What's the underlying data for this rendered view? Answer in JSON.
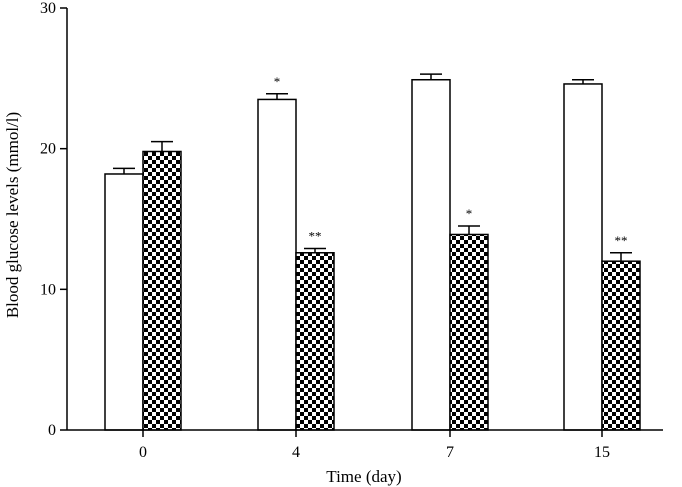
{
  "chart_data": {
    "type": "bar",
    "xlabel": "Time (day)",
    "ylabel": "Blood glucose levels (mmol/l)",
    "categories": [
      "0",
      "4",
      "7",
      "15"
    ],
    "ylim": [
      0,
      30
    ],
    "yticks": [
      0,
      10,
      20,
      30
    ],
    "series": [
      {
        "fill": "white",
        "values": [
          18.2,
          23.5,
          24.9,
          24.6
        ],
        "errors": [
          0.4,
          0.4,
          0.4,
          0.3
        ],
        "annotations": [
          "",
          "*",
          "",
          ""
        ]
      },
      {
        "fill": "checkerboard",
        "values": [
          19.8,
          12.6,
          13.9,
          12.0
        ],
        "errors": [
          0.7,
          0.3,
          0.6,
          0.6
        ],
        "annotations": [
          "",
          "**",
          "*",
          "**"
        ]
      }
    ],
    "grid": false,
    "legend": "none",
    "colors": {
      "bar_outline": "#000000",
      "pattern_dark": "#000000",
      "pattern_light": "#ffffff"
    }
  }
}
